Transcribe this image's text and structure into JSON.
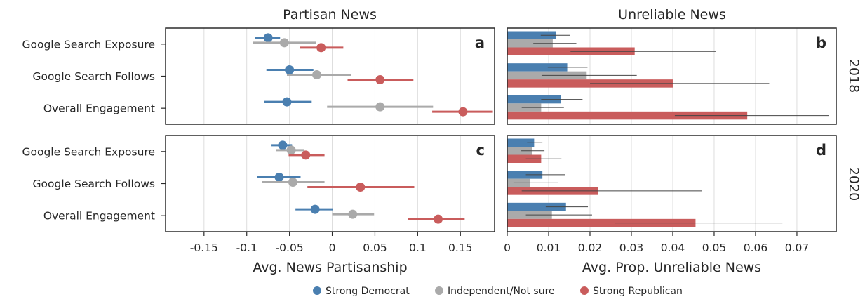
{
  "colors": {
    "dem": "#4a7fb0",
    "ind": "#aaaaaa",
    "rep": "#c95c5c",
    "grid": "#dddddd",
    "frame": "#2b2b2b",
    "ci": "#444444"
  },
  "column_titles": [
    "Partisan News",
    "Unreliable News"
  ],
  "row_labels": [
    "2018",
    "2020"
  ],
  "legend": [
    {
      "label": "Strong Democrat",
      "color": "#4a7fb0"
    },
    {
      "label": "Independent/Not sure",
      "color": "#aaaaaa"
    },
    {
      "label": "Strong Republican",
      "color": "#c95c5c"
    }
  ],
  "chart_data": [
    {
      "panel": "a",
      "type": "scatter",
      "year": "2018",
      "metric": "partisan",
      "categories": [
        "Google Search Exposure",
        "Google Search Follows",
        "Overall Engagement"
      ],
      "xlabel": "Avg. News Partisanship",
      "xlim": [
        -0.195,
        0.19
      ],
      "xticks": [
        -0.15,
        -0.1,
        -0.05,
        0,
        0.05,
        0.1,
        0.15
      ],
      "xtick_labels": [
        "-0.15",
        "-0.1",
        "-0.05",
        "0",
        "0.05",
        "0.1",
        "0.15"
      ],
      "series": [
        {
          "name": "Strong Democrat",
          "values": [
            -0.075,
            -0.05,
            -0.053
          ],
          "lo": [
            -0.09,
            -0.077,
            -0.08
          ],
          "hi": [
            -0.061,
            -0.022,
            -0.024
          ]
        },
        {
          "name": "Independent/Not sure",
          "values": [
            -0.056,
            -0.018,
            0.056
          ],
          "lo": [
            -0.093,
            -0.053,
            -0.006
          ],
          "hi": [
            -0.019,
            0.022,
            0.118
          ]
        },
        {
          "name": "Strong Republican",
          "values": [
            -0.013,
            0.056,
            0.153
          ],
          "lo": [
            -0.038,
            0.018,
            0.117
          ],
          "hi": [
            0.013,
            0.095,
            0.188
          ]
        }
      ]
    },
    {
      "panel": "b",
      "type": "bar",
      "year": "2018",
      "metric": "unreliable",
      "categories": [
        "Google Search Exposure",
        "Google Search Follows",
        "Overall Engagement"
      ],
      "xlabel": "Avg. Prop. Unreliable News",
      "xlim": [
        0,
        0.0795
      ],
      "xticks": [
        0,
        0.01,
        0.02,
        0.03,
        0.04,
        0.05,
        0.06,
        0.07
      ],
      "xtick_labels": [
        "0",
        "0.01",
        "0.02",
        "0.03",
        "0.04",
        "0.05",
        "0.06",
        "0.07"
      ],
      "series": [
        {
          "name": "Strong Democrat",
          "values": [
            0.0118,
            0.0145,
            0.013
          ],
          "lo": [
            0.0081,
            0.0098,
            0.0082
          ],
          "hi": [
            0.0151,
            0.0194,
            0.0182
          ]
        },
        {
          "name": "Independent/Not sure",
          "values": [
            0.011,
            0.0192,
            0.0082
          ],
          "lo": [
            0.0063,
            0.0083,
            0.0035
          ],
          "hi": [
            0.0167,
            0.0313,
            0.0137
          ]
        },
        {
          "name": "Strong Republican",
          "values": [
            0.0308,
            0.04,
            0.058
          ],
          "lo": [
            0.0153,
            0.02,
            0.0405
          ],
          "hi": [
            0.0505,
            0.0633,
            0.0778
          ]
        }
      ]
    },
    {
      "panel": "c",
      "type": "scatter",
      "year": "2020",
      "metric": "partisan",
      "categories": [
        "Google Search Exposure",
        "Google Search Follows",
        "Overall Engagement"
      ],
      "xlabel": "Avg. News Partisanship",
      "xlim": [
        -0.195,
        0.19
      ],
      "xticks": [
        -0.15,
        -0.1,
        -0.05,
        0,
        0.05,
        0.1,
        0.15
      ],
      "xtick_labels": [
        "-0.15",
        "-0.1",
        "-0.05",
        "0",
        "0.05",
        "0.1",
        "0.15"
      ],
      "series": [
        {
          "name": "Strong Democrat",
          "values": [
            -0.058,
            -0.062,
            -0.02
          ],
          "lo": [
            -0.071,
            -0.088,
            -0.043
          ],
          "hi": [
            -0.047,
            -0.037,
            0.001
          ]
        },
        {
          "name": "Independent/Not sure",
          "values": [
            -0.048,
            -0.046,
            0.024
          ],
          "lo": [
            -0.066,
            -0.082,
            0.0
          ],
          "hi": [
            -0.033,
            -0.009,
            0.049
          ]
        },
        {
          "name": "Strong Republican",
          "values": [
            -0.031,
            0.033,
            0.124
          ],
          "lo": [
            -0.051,
            -0.029,
            0.089
          ],
          "hi": [
            -0.009,
            0.096,
            0.155
          ]
        }
      ]
    },
    {
      "panel": "d",
      "type": "bar",
      "year": "2020",
      "metric": "unreliable",
      "categories": [
        "Google Search Exposure",
        "Google Search Follows",
        "Overall Engagement"
      ],
      "xlabel": "Avg. Prop. Unreliable News",
      "xlim": [
        0,
        0.0795
      ],
      "xticks": [
        0,
        0.01,
        0.02,
        0.03,
        0.04,
        0.05,
        0.06,
        0.07
      ],
      "xtick_labels": [
        "0",
        "0.01",
        "0.02",
        "0.03",
        "0.04",
        "0.05",
        "0.06",
        "0.07"
      ],
      "series": [
        {
          "name": "Strong Democrat",
          "values": [
            0.0065,
            0.0085,
            0.0142
          ],
          "lo": [
            0.0048,
            0.0045,
            0.0093
          ],
          "hi": [
            0.0085,
            0.014,
            0.0195
          ]
        },
        {
          "name": "Independent/Not sure",
          "values": [
            0.006,
            0.0055,
            0.0108
          ],
          "lo": [
            0.0034,
            0.0015,
            0.0045
          ],
          "hi": [
            0.009,
            0.0122,
            0.0205
          ]
        },
        {
          "name": "Strong Republican",
          "values": [
            0.0082,
            0.022,
            0.0455
          ],
          "lo": [
            0.0045,
            0.0035,
            0.026
          ],
          "hi": [
            0.0131,
            0.047,
            0.0665
          ]
        }
      ]
    }
  ]
}
